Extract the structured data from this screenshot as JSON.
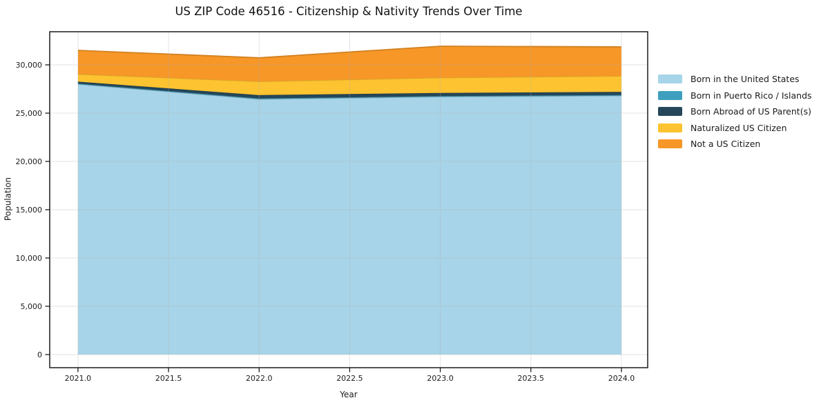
{
  "chart_data": {
    "type": "area",
    "stacked": true,
    "title": "US ZIP Code 46516 - Citizenship & Nativity Trends Over Time",
    "xlabel": "Year",
    "ylabel": "Population",
    "x": [
      2021.0,
      2022.0,
      2023.0,
      2024.0
    ],
    "series": [
      {
        "name": "Born in the United States",
        "color": "#a7d4e8",
        "values": [
          28000,
          26450,
          26700,
          26800
        ]
      },
      {
        "name": "Born in Puerto Rico / Islands",
        "color": "#3f9fbe",
        "values": [
          60,
          70,
          70,
          80
        ]
      },
      {
        "name": "Born Abroad of US Parent(s)",
        "color": "#254759",
        "values": [
          200,
          350,
          320,
          320
        ]
      },
      {
        "name": "Naturalized US Citizen",
        "color": "#fdc330",
        "values": [
          780,
          1420,
          1590,
          1660
        ]
      },
      {
        "name": "Not a US Citizen",
        "color": "#f79727",
        "values": [
          2460,
          2440,
          3250,
          3000
        ]
      }
    ],
    "stacked_totals": [
      31500,
      30730,
      31930,
      31860
    ],
    "x_ticks": [
      2021.0,
      2021.5,
      2022.0,
      2022.5,
      2023.0,
      2023.5,
      2024.0
    ],
    "x_tick_labels": [
      "2021.0",
      "2021.5",
      "2022.0",
      "2022.5",
      "2023.0",
      "2023.5",
      "2024.0"
    ],
    "y_ticks": [
      0,
      5000,
      10000,
      15000,
      20000,
      25000,
      30000
    ],
    "y_tick_labels": [
      "0",
      "5,000",
      "10,000",
      "15,000",
      "20,000",
      "25,000",
      "30,000"
    ],
    "xlim": [
      2020.844,
      2024.145
    ],
    "ylim": [
      -1360,
      33430
    ],
    "grid": true,
    "grid_color": "#b0b0b0",
    "spine_color": "#1a1a1a",
    "text_color": "#1a1a1a",
    "background_color": "#ffffff",
    "legend_position": "outside-right"
  }
}
